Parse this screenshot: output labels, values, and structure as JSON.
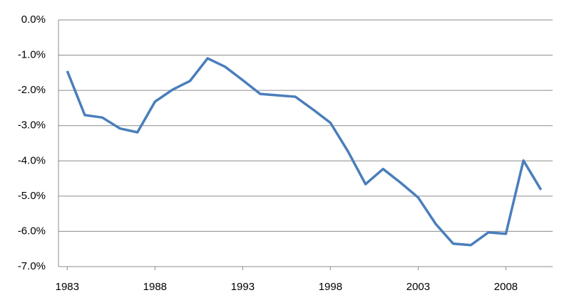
{
  "chart_data": {
    "type": "line",
    "x": [
      1983,
      1984,
      1985,
      1986,
      1987,
      1988,
      1989,
      1990,
      1991,
      1992,
      1993,
      1994,
      1995,
      1996,
      1997,
      1998,
      1999,
      2000,
      2001,
      2002,
      2003,
      2004,
      2005,
      2006,
      2007,
      2008,
      2009,
      2010
    ],
    "series": [
      {
        "color": "#4a7ebb",
        "values": [
          -1.45,
          -2.7,
          -2.77,
          -3.08,
          -3.19,
          -2.32,
          -1.98,
          -1.73,
          -1.09,
          -1.33,
          -1.71,
          -2.1,
          -2.14,
          -2.18,
          -2.54,
          -2.92,
          -3.73,
          -4.66,
          -4.23,
          -4.62,
          -5.04,
          -5.79,
          -6.35,
          -6.39,
          -6.03,
          -6.07,
          -3.99,
          -4.82
        ]
      }
    ],
    "xlim": [
      1982.5,
      2010.5
    ],
    "xticks": [
      1983,
      1988,
      1993,
      1998,
      2003,
      2008
    ],
    "ylim": [
      -7,
      0
    ],
    "yticks": [
      {
        "value": 0,
        "label": "0.0%"
      },
      {
        "value": -1,
        "label": "-1.0%"
      },
      {
        "value": -2,
        "label": "-2.0%"
      },
      {
        "value": -3,
        "label": "-3.0%"
      },
      {
        "value": -4,
        "label": "-4.0%"
      },
      {
        "value": -5,
        "label": "-5.0%"
      },
      {
        "value": -6,
        "label": "-6.0%"
      },
      {
        "value": -7,
        "label": "-7.0%"
      }
    ],
    "grid": true
  }
}
